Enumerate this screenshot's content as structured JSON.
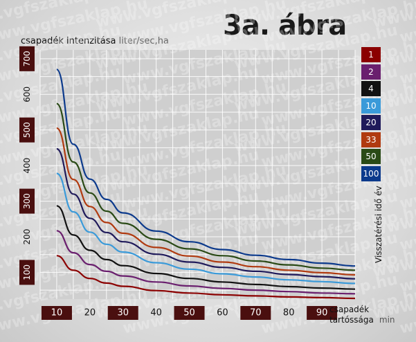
{
  "chart_data": {
    "type": "line",
    "title": "3a. ábra",
    "ylabel": "csapadék intenzitása",
    "ylabel_unit": "liter/sec,ha",
    "xlabel": "csapadék tartóssága",
    "xlabel_unit": "min",
    "legend_title": "Visszatérési idő év",
    "legend_placement": "right",
    "grid": true,
    "xlim": [
      5,
      100
    ],
    "ylim": [
      25,
      725
    ],
    "x_ticks": [
      "10",
      "20",
      "30",
      "40",
      "50",
      "60",
      "70",
      "80",
      "90"
    ],
    "y_ticks": [
      "100",
      "200",
      "300",
      "400",
      "500",
      "600",
      "700"
    ],
    "x": [
      10,
      15,
      20,
      25,
      30,
      40,
      50,
      60,
      70,
      80,
      90,
      100
    ],
    "series": [
      {
        "name": "1",
        "color": "#8b0000",
        "values": [
          147,
          106,
          83,
          70,
          61,
          49,
          42,
          37,
          34,
          31,
          29,
          27
        ]
      },
      {
        "name": "2",
        "color": "#6a1f6e",
        "values": [
          217,
          155,
          122,
          103,
          90,
          73,
          62,
          55,
          50,
          46,
          42,
          40
        ]
      },
      {
        "name": "4",
        "color": "#111111",
        "values": [
          287,
          205,
          162,
          136,
          119,
          97,
          83,
          73,
          66,
          60,
          56,
          53
        ]
      },
      {
        "name": "10",
        "color": "#3a9ad9",
        "values": [
          378,
          270,
          213,
          179,
          157,
          127,
          109,
          96,
          87,
          79,
          74,
          69
        ]
      },
      {
        "name": "20",
        "color": "#1f1a5a",
        "values": [
          447,
          320,
          252,
          212,
          186,
          151,
          129,
          114,
          103,
          94,
          88,
          82
        ]
      },
      {
        "name": "33",
        "color": "#b03a10",
        "values": [
          505,
          361,
          285,
          240,
          210,
          170,
          146,
          129,
          116,
          106,
          99,
          93
        ]
      },
      {
        "name": "50",
        "color": "#2a4a16",
        "values": [
          574,
          410,
          323,
          272,
          238,
          193,
          166,
          147,
          132,
          121,
          112,
          106
        ]
      },
      {
        "name": "100",
        "color": "#0c3a8c",
        "values": [
          670,
          460,
          362,
          305,
          267,
          216,
          186,
          164,
          148,
          136,
          126,
          118
        ]
      }
    ]
  },
  "watermark": "www.vgfszaklap.hu",
  "colors": {
    "plot_background": "#cfcfcf",
    "tick_box": "#4a0f0f",
    "grid": "#ffffff"
  }
}
